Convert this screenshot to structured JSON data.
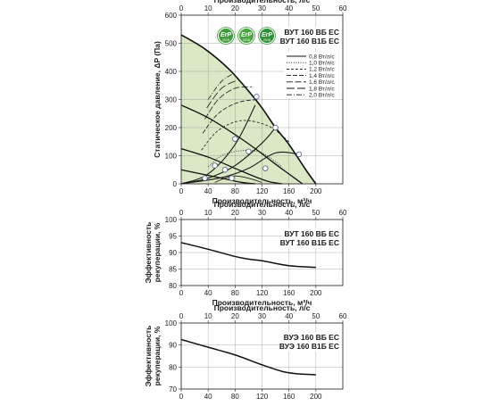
{
  "chart_data": [
    {
      "type": "line",
      "id": "pressure",
      "title": "ВУТ 160 ВБ ЕС\nВУТ 160 В1Б ЕС",
      "title_lines": [
        "ВУТ 160 ВБ ЕС",
        "ВУТ 160 В1Б ЕС"
      ],
      "xlabel": "Производительность, м³/ч",
      "x2label": "Производительность, л/с",
      "ylabel": "Статическое давление, ΔP (Па)",
      "xlim": [
        0,
        240
      ],
      "ylim": [
        0,
        600
      ],
      "x2lim": [
        0,
        60
      ],
      "xticks": [
        "0",
        "40",
        "80",
        "120",
        "160",
        "200"
      ],
      "yticks": [
        "0",
        "100",
        "200",
        "300",
        "400",
        "500",
        "600"
      ],
      "x2ticks": [
        "0",
        "10",
        "20",
        "30",
        "40",
        "50",
        "60"
      ],
      "grid": true,
      "legend_position": "top-right",
      "legend": [
        {
          "label": "0,8 Вт/л/с",
          "dash": "solid"
        },
        {
          "label": "1,0 Вт/л/с",
          "dash": "dotted"
        },
        {
          "label": "1,2 Вт/л/с",
          "dash": "short-dash"
        },
        {
          "label": "1,4 Вт/л/с",
          "dash": "medium-dash"
        },
        {
          "label": "1,6 Вт/л/с",
          "dash": "long-dash"
        },
        {
          "label": "1,8 Вт/л/с",
          "dash": "longer-dash"
        },
        {
          "label": "2,0 Вт/л/с",
          "dash": "dash-dot"
        }
      ],
      "badges": [
        {
          "text": "ErP",
          "year": "2015"
        },
        {
          "text": "ErP",
          "year": "2016"
        },
        {
          "text": "ErP",
          "year": "2018"
        }
      ],
      "fill_region": {
        "color": "#dbe8c6",
        "edge": "#b9cfa0"
      },
      "fan_curves": [
        {
          "name": "",
          "x": [
            0,
            35,
            70,
            100,
            120,
            140,
            160,
            185,
            200
          ],
          "y": [
            530,
            480,
            410,
            330,
            270,
            200,
            140,
            50,
            0
          ]
        },
        {
          "name": "",
          "x": [
            0,
            40,
            80,
            110,
            140,
            160,
            180
          ],
          "y": [
            280,
            235,
            175,
            125,
            70,
            35,
            0
          ]
        },
        {
          "name": "",
          "x": [
            0,
            40,
            80,
            110,
            130,
            150
          ],
          "y": [
            125,
            95,
            55,
            25,
            8,
            0
          ]
        },
        {
          "name": "",
          "x": [
            0,
            40,
            70,
            90,
            110
          ],
          "y": [
            50,
            30,
            15,
            5,
            0
          ]
        }
      ],
      "system_curves": [
        {
          "name": "",
          "x": [
            0,
            40,
            80,
            110
          ],
          "y": [
            0,
            35,
            140,
            280
          ]
        },
        {
          "name": "",
          "x": [
            0,
            40,
            80,
            120,
            140
          ],
          "y": [
            0,
            20,
            65,
            145,
            200
          ]
        },
        {
          "name": "",
          "x": [
            0,
            60,
            100,
            140,
            175
          ],
          "y": [
            0,
            22,
            55,
            110,
            105
          ]
        }
      ],
      "efficiency_curves": [
        {
          "name": "0,8 Вт/л/с",
          "dash": "solid",
          "x": [
            50,
            65,
            80,
            100,
            120
          ],
          "y": [
            5,
            20,
            28,
            20,
            5
          ]
        },
        {
          "name": "1,0 Вт/л/с",
          "dash": "dotted",
          "x": [
            40,
            60,
            90,
            120,
            150
          ],
          "y": [
            60,
            100,
            118,
            110,
            60
          ]
        },
        {
          "name": "1,2 Вт/л/с",
          "dash": "short-dash",
          "x": [
            30,
            55,
            90,
            130,
            160
          ],
          "y": [
            120,
            190,
            225,
            205,
            150
          ]
        },
        {
          "name": "1,4 Вт/л/с",
          "dash": "medium-dash",
          "x": [
            32,
            55,
            85,
            115
          ],
          "y": [
            180,
            250,
            290,
            300
          ]
        },
        {
          "name": "1,6 Вт/л/с",
          "dash": "long-dash",
          "x": [
            35,
            55,
            80,
            105
          ],
          "y": [
            230,
            300,
            340,
            345
          ]
        },
        {
          "name": "1,8 Вт/л/с",
          "dash": "longer-dash",
          "x": [
            38,
            60,
            85
          ],
          "y": [
            270,
            340,
            370
          ]
        },
        {
          "name": "2,0 Вт/л/с",
          "dash": "dash-dot",
          "x": [
            40,
            60,
            80
          ],
          "y": [
            300,
            365,
            395
          ]
        }
      ],
      "operating_points": [
        {
          "x": 112,
          "y": 310
        },
        {
          "x": 140,
          "y": 200
        },
        {
          "x": 175,
          "y": 105
        },
        {
          "x": 80,
          "y": 160
        },
        {
          "x": 100,
          "y": 115
        },
        {
          "x": 125,
          "y": 55
        },
        {
          "x": 50,
          "y": 65
        },
        {
          "x": 65,
          "y": 50
        },
        {
          "x": 75,
          "y": 20
        },
        {
          "x": 35,
          "y": 20
        }
      ]
    },
    {
      "type": "line",
      "id": "efficiency-1",
      "title": "ВУТ 160 ВБ ЕС\nВУТ 160 В1Б ЕС",
      "title_lines": [
        "ВУТ 160 ВБ ЕС",
        "ВУТ 160 В1Б ЕС"
      ],
      "xlabel": "Производительность, м³/ч",
      "x2label": "Производительность, л/с",
      "ylabel": "Эффективность рекуперации, %",
      "ylabel_lines": [
        "Эффективность",
        "рекуперации, %"
      ],
      "xlim": [
        0,
        240
      ],
      "ylim": [
        80,
        100
      ],
      "x2lim": [
        0,
        60
      ],
      "xticks": [
        "0",
        "40",
        "80",
        "120",
        "160",
        "200"
      ],
      "yticks": [
        "80",
        "85",
        "90",
        "95",
        "100"
      ],
      "x2ticks": [
        "0",
        "10",
        "20",
        "30",
        "40",
        "50",
        "60"
      ],
      "grid": true,
      "series": [
        {
          "name": "",
          "x": [
            0,
            40,
            80,
            100,
            120,
            160,
            200
          ],
          "y": [
            93,
            91,
            88.8,
            88,
            87.5,
            86,
            85.5
          ]
        }
      ]
    },
    {
      "type": "line",
      "id": "efficiency-2",
      "title": "ВУЭ 160 ВБ ЕС\nВУЭ 160 В1Б ЕС",
      "title_lines": [
        "ВУЭ 160 ВБ ЕС",
        "ВУЭ 160 В1Б ЕС"
      ],
      "xlabel": "Производительность, м³/ч",
      "x2label": "Производительность, л/с",
      "ylabel": "Эффективность рекуперации, %",
      "ylabel_lines": [
        "Эффективность",
        "рекуперации, %"
      ],
      "xlim": [
        0,
        240
      ],
      "ylim": [
        70,
        100
      ],
      "x2lim": [
        0,
        60
      ],
      "xticks": [
        "0",
        "40",
        "80",
        "120",
        "160",
        "200"
      ],
      "yticks": [
        "70",
        "80",
        "90",
        "100"
      ],
      "x2ticks": [
        "0",
        "10",
        "20",
        "30",
        "40",
        "50",
        "60"
      ],
      "grid": true,
      "series": [
        {
          "name": "",
          "x": [
            0,
            40,
            80,
            120,
            150,
            170,
            200
          ],
          "y": [
            92.5,
            89,
            85.5,
            81,
            78,
            77,
            76.5
          ]
        }
      ]
    }
  ]
}
